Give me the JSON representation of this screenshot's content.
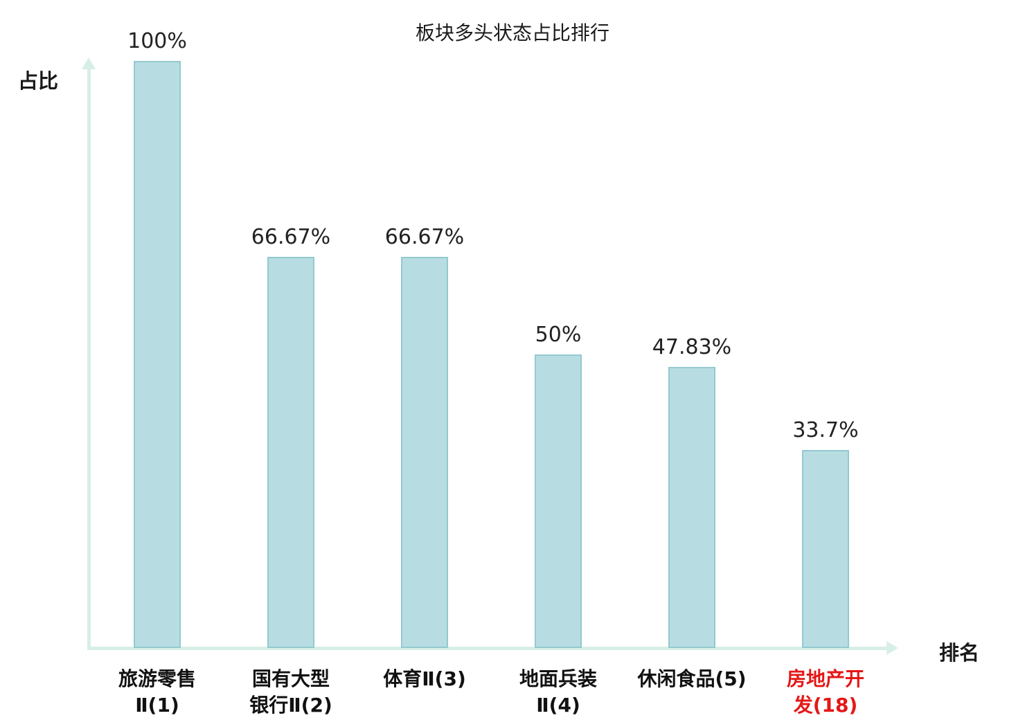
{
  "chart_data": {
    "type": "bar",
    "title": "板块多头状态占比排行",
    "ylabel": "占比",
    "xlabel": "排名",
    "categories": [
      "旅游零售Ⅱ(1)",
      "国有大型银行Ⅱ(2)",
      "体育Ⅱ(3)",
      "地面兵装Ⅱ(4)",
      "休闲食品(5)",
      "房地产开发(18)"
    ],
    "category_lines": [
      [
        "旅游零售",
        "Ⅱ(1)"
      ],
      [
        "国有大型",
        "银行Ⅱ(2)"
      ],
      [
        "体育Ⅱ(3)"
      ],
      [
        "地面兵装",
        "Ⅱ(4)"
      ],
      [
        "休闲食品(5)"
      ],
      [
        "房地产开",
        "发(18)"
      ]
    ],
    "values": [
      100,
      66.67,
      66.67,
      50,
      47.83,
      33.7
    ],
    "value_labels": [
      "100%",
      "66.67%",
      "66.67%",
      "50%",
      "47.83%",
      "33.7%"
    ],
    "ylim": [
      0,
      100
    ],
    "highlight_index": 5,
    "legend": "none",
    "grid": "off",
    "bar_color": "#b7dde2",
    "bar_border_color": "#93c9cf",
    "axis_color": "#d7efe7",
    "label_color": "#111111",
    "value_label_color": "#222222",
    "highlight_color": "#e51717"
  }
}
